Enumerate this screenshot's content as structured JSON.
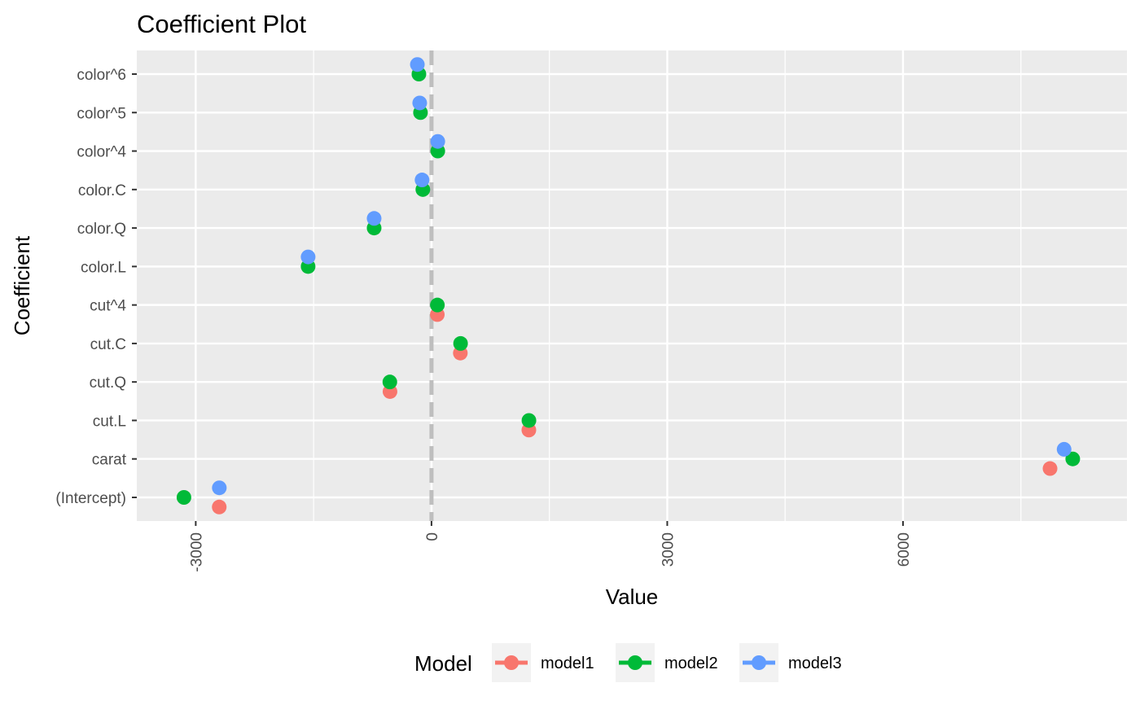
{
  "chart_data": {
    "type": "scatter",
    "title": "Coefficient Plot",
    "xlabel": "Value",
    "ylabel": "Coefficient",
    "xlim": [
      -3750,
      8850
    ],
    "x_ticks": [
      -3000,
      0,
      3000,
      6000
    ],
    "x_tick_labels": [
      "-3000",
      "0",
      "3000",
      "6000"
    ],
    "x_minor_ticks": [
      -1500,
      1500,
      4500,
      7500
    ],
    "reference_line": {
      "x": 0,
      "style": "dashed",
      "color": "#bebebe"
    },
    "categories": [
      "(Intercept)",
      "carat",
      "cut.L",
      "cut.Q",
      "cut.C",
      "cut^4",
      "color.L",
      "color.Q",
      "color.C",
      "color^4",
      "color^5",
      "color^6"
    ],
    "grid": true,
    "legend": {
      "title": "Model",
      "position": "bottom"
    },
    "series": [
      {
        "name": "model1",
        "color": "#F8766D",
        "points": [
          {
            "category": "(Intercept)",
            "x": -2701
          },
          {
            "category": "carat",
            "x": 7871
          },
          {
            "category": "cut.L",
            "x": 1239
          },
          {
            "category": "cut.Q",
            "x": -528
          },
          {
            "category": "cut.C",
            "x": 367
          },
          {
            "category": "cut^4",
            "x": 74
          }
        ]
      },
      {
        "name": "model2",
        "color": "#00BA38",
        "points": [
          {
            "category": "(Intercept)",
            "x": -3150
          },
          {
            "category": "carat",
            "x": 8160
          },
          {
            "category": "cut.L",
            "x": 1240
          },
          {
            "category": "cut.Q",
            "x": -530
          },
          {
            "category": "cut.C",
            "x": 370
          },
          {
            "category": "cut^4",
            "x": 75
          },
          {
            "category": "color.L",
            "x": -1570
          },
          {
            "category": "color.Q",
            "x": -730
          },
          {
            "category": "color.C",
            "x": -110
          },
          {
            "category": "color^4",
            "x": 80
          },
          {
            "category": "color^5",
            "x": -140
          },
          {
            "category": "color^6",
            "x": -160
          }
        ]
      },
      {
        "name": "model3",
        "color": "#619CFF",
        "points": [
          {
            "category": "(Intercept)",
            "x": -2700
          },
          {
            "category": "carat",
            "x": 8050
          },
          {
            "category": "color.L",
            "x": -1570
          },
          {
            "category": "color.Q",
            "x": -730
          },
          {
            "category": "color.C",
            "x": -120
          },
          {
            "category": "color^4",
            "x": 80
          },
          {
            "category": "color^5",
            "x": -150
          },
          {
            "category": "color^6",
            "x": -180
          }
        ]
      }
    ]
  }
}
